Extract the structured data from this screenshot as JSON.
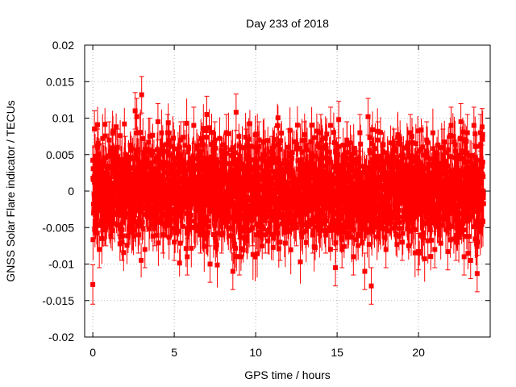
{
  "chart_data": {
    "type": "scatter",
    "title": "Day 233 of 2018",
    "xlabel": "GPS time / hours",
    "ylabel": "GNSS Solar Flare indicator / TECUs",
    "xlim": [
      -0.5,
      24.4
    ],
    "ylim": [
      -0.02,
      0.02
    ],
    "xticks": [
      0,
      5,
      10,
      15,
      20
    ],
    "xtick_labels": [
      "0",
      "5",
      "10",
      "15",
      "20"
    ],
    "yticks": [
      -0.02,
      -0.015,
      -0.01,
      -0.005,
      0,
      0.005,
      0.01,
      0.015,
      0.02
    ],
    "ytick_labels": [
      "-0.02",
      "-0.015",
      "-0.01",
      "-0.005",
      "0",
      "0.005",
      "0.01",
      "0.015",
      "0.02"
    ],
    "grid": true,
    "series": [
      {
        "name": "solar flare indicator",
        "color": "#ff0000",
        "marker": "square",
        "error_bars": true,
        "x": [
          0.0,
          0.1,
          0.2,
          0.3,
          0.4,
          0.6,
          0.8,
          1.0,
          1.2,
          1.5,
          1.8,
          2.0,
          2.3,
          2.6,
          2.7,
          2.8,
          2.9,
          3.0,
          3.2,
          3.5,
          3.8,
          4.0,
          4.3,
          4.6,
          5.0,
          5.4,
          5.8,
          6.2,
          6.6,
          7.0,
          7.2,
          7.5,
          7.9,
          8.2,
          8.6,
          8.8,
          9.0,
          9.4,
          9.8,
          10.2,
          10.6,
          11.0,
          11.5,
          12.0,
          12.5,
          13.0,
          13.5,
          14.0,
          14.3,
          14.6,
          14.9,
          15.1,
          15.3,
          15.6,
          16.0,
          16.4,
          16.7,
          16.9,
          17.1,
          17.5,
          18.0,
          18.5,
          19.0,
          19.5,
          20.0,
          20.5,
          21.0,
          21.5,
          21.8,
          22.0,
          22.3,
          22.6,
          22.8,
          23.0,
          23.2,
          23.4,
          23.6,
          23.8,
          23.9
        ],
        "y": [
          -0.0128,
          0.0085,
          -0.0035,
          0.006,
          -0.008,
          0.004,
          -0.005,
          0.007,
          -0.004,
          0.006,
          -0.007,
          0.005,
          -0.003,
          0.011,
          0.0102,
          -0.006,
          0.008,
          0.0132,
          -0.008,
          0.0075,
          -0.005,
          0.0095,
          -0.006,
          0.008,
          -0.007,
          0.007,
          -0.009,
          0.009,
          -0.006,
          0.0105,
          -0.01,
          0.007,
          -0.006,
          0.008,
          -0.011,
          0.0108,
          -0.009,
          0.006,
          -0.005,
          0.007,
          -0.006,
          0.005,
          -0.007,
          0.006,
          -0.005,
          0.007,
          -0.006,
          0.008,
          -0.006,
          0.009,
          -0.0105,
          0.0098,
          -0.008,
          0.007,
          -0.009,
          0.008,
          -0.011,
          0.0102,
          -0.013,
          0.007,
          -0.008,
          0.006,
          -0.007,
          0.008,
          -0.0083,
          0.007,
          -0.008,
          0.006,
          -0.0083,
          0.009,
          -0.007,
          0.0095,
          -0.009,
          0.008,
          -0.0095,
          0.009,
          -0.0113,
          0.008,
          0.0088
        ],
        "error": [
          0.0027,
          0.0025,
          0.0025,
          0.0025,
          0.0025,
          0.0025,
          0.0025,
          0.0025,
          0.0025,
          0.0025,
          0.0025,
          0.0025,
          0.0025,
          0.0025,
          0.0025,
          0.0025,
          0.0025,
          0.0025,
          0.0025,
          0.0025,
          0.0025,
          0.0025,
          0.0025,
          0.0025,
          0.0025,
          0.0025,
          0.0025,
          0.0025,
          0.0025,
          0.0025,
          0.0025,
          0.0025,
          0.0025,
          0.0025,
          0.0025,
          0.0025,
          0.0025,
          0.0025,
          0.0025,
          0.0025,
          0.0025,
          0.0025,
          0.0025,
          0.0025,
          0.0025,
          0.0025,
          0.0025,
          0.0025,
          0.0025,
          0.0025,
          0.0025,
          0.0025,
          0.0025,
          0.0025,
          0.0025,
          0.0025,
          0.0025,
          0.0025,
          0.0025,
          0.0025,
          0.0025,
          0.0025,
          0.0025,
          0.0025,
          0.0025,
          0.0025,
          0.0025,
          0.0025,
          0.0025,
          0.0025,
          0.0025,
          0.0025,
          0.0025,
          0.0025,
          0.0025,
          0.0025,
          0.0025,
          0.0025,
          0.0025
        ]
      }
    ],
    "dense_band": {
      "x_start": 0.0,
      "x_end": 24.0,
      "x_step": 0.0083,
      "typical_amplitude": 0.0055,
      "typical_error": 0.0025
    }
  }
}
